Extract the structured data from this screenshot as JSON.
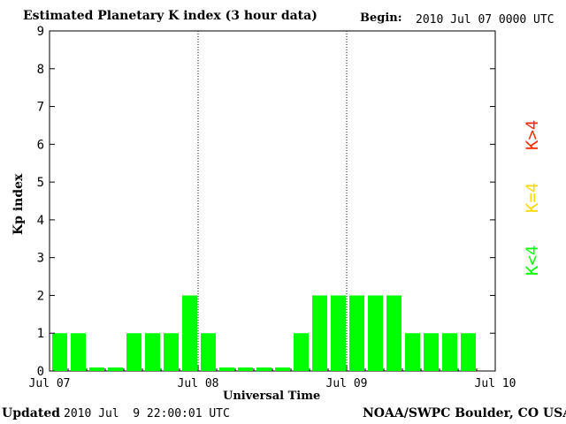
{
  "header": {
    "title": "Estimated Planetary K index (3 hour data)",
    "begin_label": "Begin:",
    "begin_value": "2010 Jul 07 0000 UTC"
  },
  "footer": {
    "updated_label": "Updated",
    "updated_value": "2010 Jul  9 22:00:01 UTC",
    "credit": "NOAA/SWPC Boulder, CO USA"
  },
  "legend": {
    "gt4": "K>4",
    "eq4": "K=4",
    "lt4": "K<4"
  },
  "colors": {
    "low": "#00ff00",
    "mid": "#ffd700",
    "high": "#ff2a00"
  },
  "chart_data": {
    "type": "bar",
    "title": "Estimated Planetary K index (3 hour data)",
    "xlabel": "Universal Time",
    "ylabel": "Kp index",
    "ylim": [
      0,
      9
    ],
    "yticks": [
      0,
      1,
      2,
      3,
      4,
      5,
      6,
      7,
      8,
      9
    ],
    "xticks": [
      "Jul 07",
      "Jul 08",
      "Jul 09",
      "Jul 10"
    ],
    "values": [
      1,
      1,
      0,
      0,
      1,
      1,
      1,
      2,
      1,
      0,
      0,
      0,
      0,
      1,
      2,
      2,
      2,
      2,
      2,
      1,
      1,
      1,
      1
    ]
  }
}
